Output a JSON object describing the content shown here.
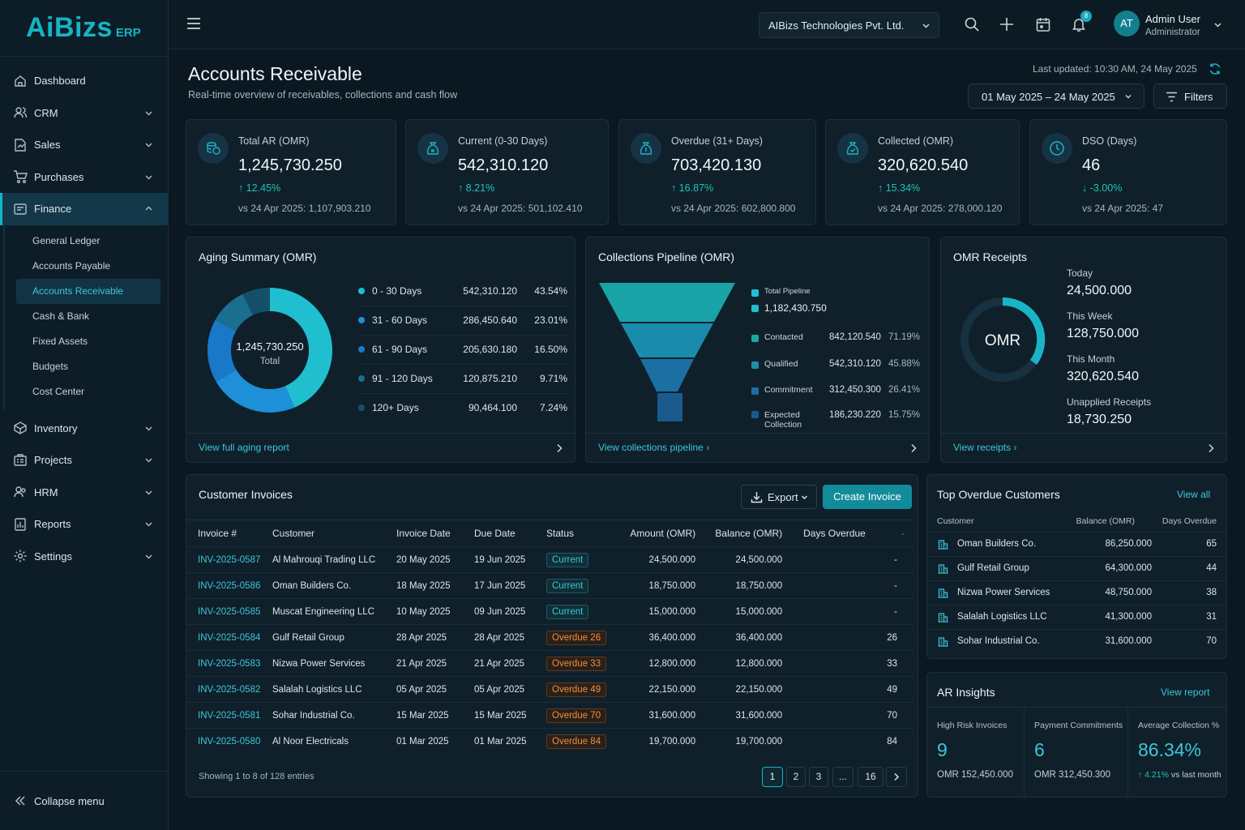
{
  "brand": {
    "name": "AiBizs",
    "suffix": "ERP"
  },
  "topbar": {
    "company": "AIBizs Technologies Pvt. Ltd.",
    "notification_count": "8",
    "avatar_initials": "AT",
    "user_name": "Admin User",
    "user_role": "Administrator"
  },
  "sidebar": {
    "items": [
      {
        "label": "Dashboard",
        "icon": "home-icon"
      },
      {
        "label": "CRM",
        "icon": "users-icon"
      },
      {
        "label": "Sales",
        "icon": "sales-icon"
      },
      {
        "label": "Purchases",
        "icon": "cart-icon"
      },
      {
        "label": "Finance",
        "icon": "finance-icon"
      },
      {
        "label": "Inventory",
        "icon": "box-icon"
      },
      {
        "label": "Projects",
        "icon": "projects-icon"
      },
      {
        "label": "HRM",
        "icon": "people-icon"
      },
      {
        "label": "Reports",
        "icon": "report-icon"
      },
      {
        "label": "Settings",
        "icon": "gear-icon"
      }
    ],
    "finance_sub": [
      "General Ledger",
      "Accounts Payable",
      "Accounts Receivable",
      "Cash & Bank",
      "Fixed Assets",
      "Budgets",
      "Cost Center"
    ],
    "collapse": "Collapse menu"
  },
  "page": {
    "title": "Accounts Receivable",
    "subtitle": "Real-time overview of receivables, collections and cash flow",
    "updated": "Last updated: 10:30 AM, 24 May 2025",
    "date_range": "01 May 2025 – 24 May 2025",
    "filters": "Filters"
  },
  "kpis": [
    {
      "label": "Total AR (OMR)",
      "value": "1,245,730.250",
      "change": "12.45%",
      "prev": "vs 24 Apr 2025: 1,107,903.210"
    },
    {
      "label": "Current (0-30 Days)",
      "value": "542,310.120",
      "change": "8.21%",
      "prev": "vs 24 Apr 2025: 501,102.410"
    },
    {
      "label": "Overdue (31+ Days)",
      "value": "703,420.130",
      "change": "16.87%",
      "prev": "vs 24 Apr 2025: 602,800.800"
    },
    {
      "label": "Collected (OMR)",
      "value": "320,620.540",
      "change": "15.34%",
      "prev": "vs 24 Apr 2025: 278,000.120"
    },
    {
      "label": "DSO (Days)",
      "value": "46",
      "change": "-3.00%",
      "prev": "vs 24 Apr 2025: 47"
    }
  ],
  "aging": {
    "title": "Aging Summary (OMR)",
    "total": "1,245,730.250",
    "total_label": "Total",
    "footer": "View full aging report",
    "rows": [
      {
        "label": "0 - 30 Days",
        "value": "542,310.120",
        "pct": "43.54%",
        "color": "#1fbfcf",
        "share": 43.54
      },
      {
        "label": "31 - 60 Days",
        "value": "286,450.640",
        "pct": "23.01%",
        "color": "#1e8fd9",
        "share": 23.01
      },
      {
        "label": "61 - 90 Days",
        "value": "205,630.180",
        "pct": "16.50%",
        "color": "#1a78c8",
        "share": 16.5
      },
      {
        "label": "91 - 120 Days",
        "value": "120,875.210",
        "pct": "9.71%",
        "color": "#1a6f8f",
        "share": 9.71
      },
      {
        "label": "120+ Days",
        "value": "90,464.100",
        "pct": "7.24%",
        "color": "#15506b",
        "share": 7.24
      }
    ]
  },
  "pipeline": {
    "title": "Collections Pipeline (OMR)",
    "footer": "View collections pipeline",
    "total_label": "Total Pipeline",
    "total_value": "1,182,430.750",
    "rows": [
      {
        "label": "Contacted",
        "value": "842,120.540",
        "pct": "71.19%",
        "color": "#1aa7a8"
      },
      {
        "label": "Qualified",
        "value": "542,310.120",
        "pct": "45.88%",
        "color": "#1b8fa6"
      },
      {
        "label": "Commitment",
        "value": "312,450.300",
        "pct": "26.41%",
        "color": "#1c6fa3"
      },
      {
        "label": "Expected Collection",
        "value": "186,230.220",
        "pct": "15.75%",
        "color": "#1a5a8d"
      }
    ]
  },
  "receipts": {
    "title": "OMR Receipts",
    "center": "OMR",
    "footer": "View receipts",
    "items": [
      {
        "label": "Today",
        "value": "24,500.000"
      },
      {
        "label": "This Week",
        "value": "128,750.000"
      },
      {
        "label": "This Month",
        "value": "320,620.540"
      },
      {
        "label": "Unapplied Receipts",
        "value": "18,730.250"
      }
    ]
  },
  "invoices": {
    "title": "Customer Invoices",
    "export": "Export",
    "create": "Create Invoice",
    "headers": [
      "Invoice #",
      "Customer",
      "Invoice Date",
      "Due Date",
      "Status",
      "Amount (OMR)",
      "Balance (OMR)",
      "Days Overdue",
      "-"
    ],
    "rows": [
      {
        "no": "INV-2025-0587",
        "customer": "Al Mahrouqi Trading LLC",
        "inv": "20 May 2025",
        "due": "19 Jun 2025",
        "status": "Current",
        "type": "cur",
        "amount": "24,500.000",
        "balance": "24,500.000",
        "days": "-"
      },
      {
        "no": "INV-2025-0586",
        "customer": "Oman Builders Co.",
        "inv": "18 May 2025",
        "due": "17 Jun 2025",
        "status": "Current",
        "type": "cur",
        "amount": "18,750.000",
        "balance": "18,750.000",
        "days": "-"
      },
      {
        "no": "INV-2025-0585",
        "customer": "Muscat Engineering LLC",
        "inv": "10 May 2025",
        "due": "09 Jun 2025",
        "status": "Current",
        "type": "cur",
        "amount": "15,000.000",
        "balance": "15,000.000",
        "days": "-"
      },
      {
        "no": "INV-2025-0584",
        "customer": "Gulf Retail Group",
        "inv": "28 Apr 2025",
        "due": "28 Apr 2025",
        "status": "Overdue 26",
        "type": "ovd",
        "amount": "36,400.000",
        "balance": "36,400.000",
        "days": "26"
      },
      {
        "no": "INV-2025-0583",
        "customer": "Nizwa Power Services",
        "inv": "21 Apr 2025",
        "due": "21 Apr 2025",
        "status": "Overdue 33",
        "type": "ovd",
        "amount": "12,800.000",
        "balance": "12,800.000",
        "days": "33"
      },
      {
        "no": "INV-2025-0582",
        "customer": "Salalah Logistics LLC",
        "inv": "05 Apr 2025",
        "due": "05 Apr 2025",
        "status": "Overdue 49",
        "type": "ovd",
        "amount": "22,150.000",
        "balance": "22,150.000",
        "days": "49"
      },
      {
        "no": "INV-2025-0581",
        "customer": "Sohar Industrial Co.",
        "inv": "15 Mar 2025",
        "due": "15 Mar 2025",
        "status": "Overdue 70",
        "type": "ovd",
        "amount": "31,600.000",
        "balance": "31,600.000",
        "days": "70"
      },
      {
        "no": "INV-2025-0580",
        "customer": "Al Noor Electricals",
        "inv": "01 Mar 2025",
        "due": "01 Mar 2025",
        "status": "Overdue 84",
        "type": "ovd",
        "amount": "19,700.000",
        "balance": "19,700.000",
        "days": "84"
      }
    ],
    "showing": "Showing 1 to 8 of 128 entries",
    "pages": [
      "1",
      "2",
      "3",
      "...",
      "16"
    ]
  },
  "top_overdue": {
    "title": "Top Overdue Customers",
    "view_all": "View all",
    "headers": [
      "Customer",
      "Balance (OMR)",
      "Days Overdue"
    ],
    "rows": [
      {
        "name": "Oman Builders Co.",
        "balance": "86,250.000",
        "days": "65"
      },
      {
        "name": "Gulf Retail Group",
        "balance": "64,300.000",
        "days": "44"
      },
      {
        "name": "Nizwa Power Services",
        "balance": "48,750.000",
        "days": "38"
      },
      {
        "name": "Salalah Logistics LLC",
        "balance": "41,300.000",
        "days": "31"
      },
      {
        "name": "Sohar Industrial Co.",
        "balance": "31,600.000",
        "days": "70"
      }
    ]
  },
  "insights": {
    "title": "AR Insights",
    "view_report": "View report",
    "cols": [
      {
        "title": "High Risk Invoices",
        "value": "9",
        "sub": "OMR 152,450.000"
      },
      {
        "title": "Payment Commitments",
        "value": "6",
        "sub": "OMR 312,450.300"
      },
      {
        "title": "Average Collection %",
        "value": "86.34%",
        "change": "4.21%",
        "sub": "vs last month"
      }
    ]
  }
}
